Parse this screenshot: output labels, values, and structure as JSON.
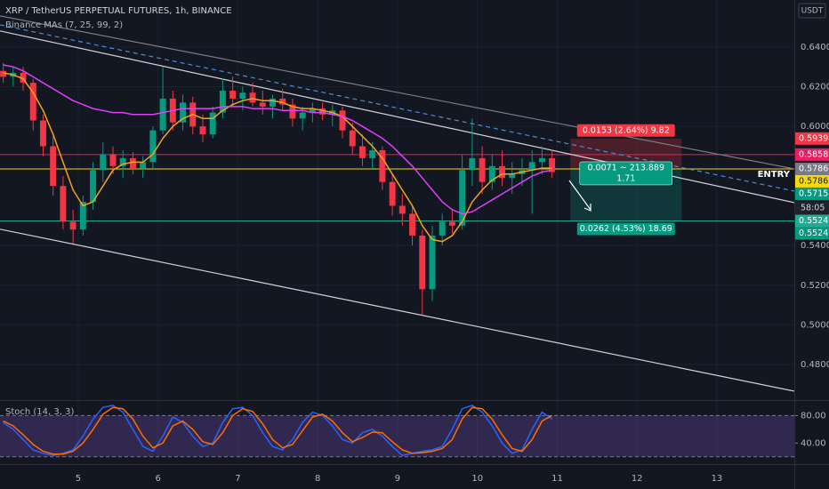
{
  "chart_data": {
    "type": "candlestick",
    "title": "XRP / TetherUS PERPETUAL FUTURES, 1h, BINANCE",
    "indicator": "Binance MAs (7, 25, 99, 2)",
    "currency": "USDT",
    "xlim": [
      4.02,
      13.97
    ],
    "xticks": [
      5,
      6,
      7,
      8,
      9,
      10,
      11,
      12,
      13
    ],
    "ylim": [
      0.4621,
      0.6637
    ],
    "yticks": [
      {
        "value": 0.64,
        "label": "0.6400"
      },
      {
        "value": 0.62,
        "label": "0.6200"
      },
      {
        "value": 0.6,
        "label": "0.6000"
      },
      {
        "value": 0.54,
        "label": "0.5400"
      },
      {
        "value": 0.52,
        "label": "0.5200"
      },
      {
        "value": 0.5,
        "label": "0.5000"
      },
      {
        "value": 0.48,
        "label": "0.4800"
      }
    ],
    "up_color": "#089981",
    "down_color": "#f23645",
    "x": [
      4.06,
      4.185,
      4.31,
      4.435,
      4.56,
      4.685,
      4.81,
      4.935,
      5.06,
      5.185,
      5.31,
      5.435,
      5.56,
      5.685,
      5.81,
      5.935,
      6.06,
      6.185,
      6.31,
      6.435,
      6.56,
      6.685,
      6.81,
      6.935,
      7.06,
      7.185,
      7.31,
      7.435,
      7.56,
      7.685,
      7.81,
      7.935,
      8.06,
      8.185,
      8.31,
      8.435,
      8.56,
      8.685,
      8.81,
      8.935,
      9.06,
      9.185,
      9.31,
      9.435,
      9.56,
      9.685,
      9.81,
      9.935,
      10.06,
      10.185,
      10.31,
      10.435,
      10.56,
      10.685,
      10.81,
      10.935
    ],
    "candles": [
      [
        0.628,
        0.632,
        0.622,
        0.625
      ],
      [
        0.625,
        0.63,
        0.62,
        0.627
      ],
      [
        0.627,
        0.63,
        0.618,
        0.622
      ],
      [
        0.622,
        0.624,
        0.598,
        0.603
      ],
      [
        0.603,
        0.606,
        0.585,
        0.59
      ],
      [
        0.59,
        0.595,
        0.565,
        0.57
      ],
      [
        0.57,
        0.575,
        0.548,
        0.552
      ],
      [
        0.552,
        0.558,
        0.541,
        0.548
      ],
      [
        0.548,
        0.565,
        0.545,
        0.562
      ],
      [
        0.562,
        0.582,
        0.558,
        0.578
      ],
      [
        0.578,
        0.592,
        0.572,
        0.586
      ],
      [
        0.586,
        0.59,
        0.576,
        0.58
      ],
      [
        0.58,
        0.588,
        0.574,
        0.584
      ],
      [
        0.584,
        0.587,
        0.576,
        0.579
      ],
      [
        0.579,
        0.585,
        0.574,
        0.582
      ],
      [
        0.582,
        0.6,
        0.578,
        0.598
      ],
      [
        0.598,
        0.63,
        0.596,
        0.614
      ],
      [
        0.614,
        0.618,
        0.598,
        0.602
      ],
      [
        0.602,
        0.616,
        0.598,
        0.612
      ],
      [
        0.612,
        0.615,
        0.596,
        0.6
      ],
      [
        0.6,
        0.606,
        0.592,
        0.596
      ],
      [
        0.596,
        0.61,
        0.594,
        0.607
      ],
      [
        0.607,
        0.624,
        0.604,
        0.618
      ],
      [
        0.618,
        0.625,
        0.61,
        0.614
      ],
      [
        0.614,
        0.62,
        0.608,
        0.617
      ],
      [
        0.617,
        0.622,
        0.61,
        0.612
      ],
      [
        0.612,
        0.618,
        0.606,
        0.61
      ],
      [
        0.61,
        0.616,
        0.604,
        0.614
      ],
      [
        0.614,
        0.619,
        0.608,
        0.611
      ],
      [
        0.611,
        0.614,
        0.6,
        0.604
      ],
      [
        0.604,
        0.61,
        0.598,
        0.607
      ],
      [
        0.607,
        0.612,
        0.602,
        0.609
      ],
      [
        0.609,
        0.612,
        0.603,
        0.606
      ],
      [
        0.606,
        0.611,
        0.6,
        0.608
      ],
      [
        0.608,
        0.61,
        0.594,
        0.598
      ],
      [
        0.598,
        0.602,
        0.586,
        0.59
      ],
      [
        0.59,
        0.596,
        0.58,
        0.584
      ],
      [
        0.584,
        0.592,
        0.578,
        0.588
      ],
      [
        0.588,
        0.59,
        0.568,
        0.572
      ],
      [
        0.572,
        0.576,
        0.555,
        0.56
      ],
      [
        0.56,
        0.566,
        0.55,
        0.556
      ],
      [
        0.556,
        0.56,
        0.54,
        0.545
      ],
      [
        0.545,
        0.548,
        0.505,
        0.518
      ],
      [
        0.518,
        0.55,
        0.512,
        0.545
      ],
      [
        0.545,
        0.556,
        0.54,
        0.552
      ],
      [
        0.552,
        0.558,
        0.546,
        0.55
      ],
      [
        0.55,
        0.586,
        0.548,
        0.578
      ],
      [
        0.578,
        0.604,
        0.57,
        0.584
      ],
      [
        0.584,
        0.59,
        0.566,
        0.572
      ],
      [
        0.572,
        0.586,
        0.568,
        0.58
      ],
      [
        0.58,
        0.588,
        0.57,
        0.574
      ],
      [
        0.574,
        0.582,
        0.566,
        0.576
      ],
      [
        0.576,
        0.584,
        0.57,
        0.578
      ],
      [
        0.578,
        0.588,
        0.556,
        0.582
      ],
      [
        0.582,
        0.59,
        0.576,
        0.584
      ],
      [
        0.584,
        0.588,
        0.574,
        0.577
      ]
    ],
    "series": [
      {
        "color": "#f7a21b",
        "values": [
          0.627,
          0.626,
          0.624,
          0.617,
          0.608,
          0.596,
          0.582,
          0.568,
          0.56,
          0.562,
          0.57,
          0.578,
          0.581,
          0.582,
          0.582,
          0.586,
          0.594,
          0.6,
          0.604,
          0.606,
          0.604,
          0.604,
          0.608,
          0.611,
          0.613,
          0.614,
          0.613,
          0.613,
          0.612,
          0.61,
          0.609,
          0.609,
          0.608,
          0.607,
          0.605,
          0.6,
          0.595,
          0.59,
          0.584,
          0.576,
          0.568,
          0.56,
          0.55,
          0.543,
          0.542,
          0.545,
          0.552,
          0.562,
          0.568,
          0.573,
          0.576,
          0.576,
          0.577,
          0.578,
          0.579,
          0.579
        ]
      },
      {
        "color": "#e040fb",
        "values": [
          0.631,
          0.63,
          0.628,
          0.625,
          0.622,
          0.619,
          0.616,
          0.613,
          0.611,
          0.609,
          0.608,
          0.607,
          0.607,
          0.606,
          0.606,
          0.606,
          0.607,
          0.608,
          0.609,
          0.609,
          0.609,
          0.609,
          0.61,
          0.61,
          0.61,
          0.609,
          0.609,
          0.609,
          0.608,
          0.608,
          0.608,
          0.607,
          0.607,
          0.606,
          0.605,
          0.603,
          0.6,
          0.597,
          0.594,
          0.59,
          0.585,
          0.58,
          0.574,
          0.568,
          0.562,
          0.558,
          0.556,
          0.557,
          0.56,
          0.563,
          0.566,
          0.569,
          0.572,
          0.575,
          0.577,
          0.578
        ]
      }
    ],
    "trendlines": [
      {
        "x": [
          4.02,
          13.97
        ],
        "y": [
          0.6557,
          0.5786
        ],
        "color": "#787b86",
        "dash": false
      },
      {
        "x": [
          4.02,
          13.97
        ],
        "y": [
          0.6512,
          0.5674
        ],
        "color": "#4f8bd6",
        "dash": true
      },
      {
        "x": [
          4.02,
          13.97
        ],
        "y": [
          0.6481,
          0.5616
        ],
        "color": "#d1d4dc",
        "dash": false
      },
      {
        "x": [
          4.02,
          13.97
        ],
        "y": [
          0.5482,
          0.4666
        ],
        "color": "#d1d4dc",
        "dash": false
      }
    ],
    "levels": [
      {
        "value": 0.5858,
        "color": "#e91e63"
      },
      {
        "value": 0.5786,
        "color": "#f5d90a"
      },
      {
        "value": 0.5524,
        "color": "#22ab94"
      }
    ],
    "price_tags": [
      {
        "value": 0.5939,
        "label": "0.5939",
        "color": "#f23645"
      },
      {
        "value": 0.5858,
        "label": "0.5858",
        "color": "#e91e63"
      },
      {
        "value": 0.5786,
        "label": "0.5786",
        "color": "#787b86"
      },
      {
        "value": 0.5786,
        "label": "0.5786",
        "color": "#f5d90a"
      },
      {
        "value": 0.5715,
        "label": "0.5715",
        "color": "#089981"
      },
      {
        "value": 0.5524,
        "label": "0.5524",
        "color": "#22ab94"
      },
      {
        "value": 0.5524,
        "label": "0.5524",
        "color": "#089981"
      }
    ],
    "countdown": "58:05",
    "entry_label": "ENTRY",
    "position": {
      "x": [
        11.165,
        12.558
      ],
      "entry": 0.5786,
      "stop": 0.5939,
      "target": 0.5524,
      "stop_label": "0.0153 (2.64%) 9.82",
      "mid_label": "0.0071 ~ 213.889",
      "ratio_label": "1.71",
      "target_label": "0.0262 (4.53%) 18.69"
    },
    "stoch": {
      "title": "Stoch (14, 3, 3)",
      "ylim": [
        9.3,
        100
      ],
      "yticks": [
        {
          "value": 80,
          "label": "80.00"
        },
        {
          "value": 40,
          "label": "40.00"
        }
      ],
      "bands": [
        20,
        80
      ],
      "series": [
        {
          "color": "#2962ff",
          "values": [
            70,
            60,
            45,
            30,
            25,
            22,
            25,
            30,
            50,
            75,
            92,
            95,
            85,
            60,
            35,
            28,
            50,
            78,
            70,
            50,
            35,
            40,
            70,
            90,
            92,
            80,
            55,
            35,
            30,
            45,
            70,
            85,
            80,
            65,
            45,
            40,
            55,
            60,
            50,
            35,
            22,
            25,
            28,
            30,
            35,
            60,
            90,
            95,
            85,
            65,
            40,
            25,
            30,
            60,
            85,
            75
          ]
        },
        {
          "color": "#ff6d00",
          "values": [
            72,
            65,
            52,
            38,
            28,
            24,
            24,
            28,
            40,
            60,
            82,
            92,
            90,
            75,
            50,
            33,
            40,
            65,
            72,
            60,
            42,
            38,
            55,
            80,
            90,
            86,
            68,
            45,
            33,
            38,
            58,
            78,
            82,
            72,
            55,
            42,
            48,
            56,
            55,
            42,
            30,
            25,
            26,
            28,
            32,
            45,
            75,
            92,
            90,
            75,
            52,
            32,
            28,
            45,
            72,
            80
          ]
        }
      ]
    }
  }
}
